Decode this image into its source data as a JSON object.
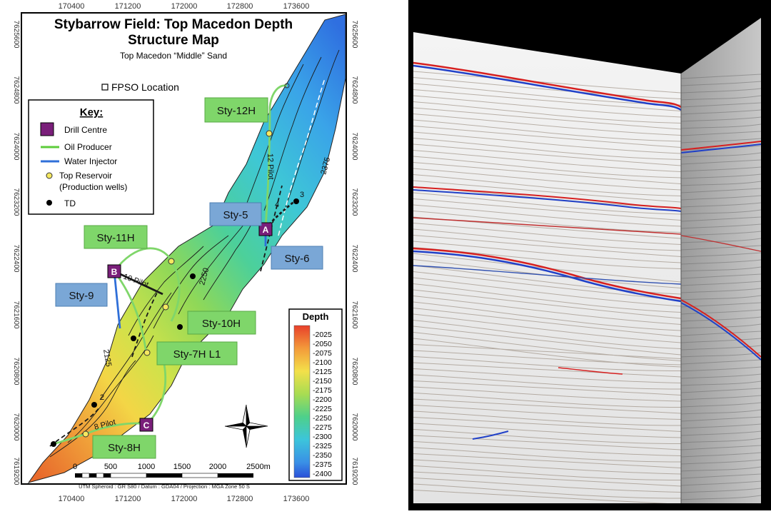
{
  "map": {
    "title_line1": "Stybarrow Field:  Top Macedon Depth",
    "title_line2": "Structure Map",
    "subtitle": "Top Macedon “Middle” Sand",
    "fpso_label": "FPSO Location",
    "x_ticks": [
      "170400",
      "171200",
      "172000",
      "172800",
      "173600"
    ],
    "y_ticks_left": [
      "7625600",
      "7624800",
      "7624000",
      "7623200",
      "7622400",
      "7621600",
      "7620800",
      "7620000",
      "7619200"
    ],
    "y_ticks_right": [
      "7625600",
      "7624800",
      "7624000",
      "7623200",
      "7622400",
      "7621600",
      "7620800",
      "7620000",
      "7619200"
    ],
    "key": {
      "title": "Key:",
      "items": [
        {
          "label": "Drill Centre",
          "symbol": "drill-centre",
          "color": "#7a1f7a"
        },
        {
          "label": "Oil Producer",
          "symbol": "line",
          "color": "#5ccc3a"
        },
        {
          "label": "Water Injector",
          "symbol": "line",
          "color": "#2f6fd8"
        },
        {
          "label": "Top Reservoir",
          "symbol": "dot",
          "color": "#f5e860"
        },
        {
          "label": "(Production wells)",
          "symbol": "none"
        },
        {
          "label": "TD",
          "symbol": "dot",
          "color": "#000000"
        }
      ]
    },
    "wells": [
      {
        "label": "Sty-12H",
        "type": "producer"
      },
      {
        "label": "Sty-5",
        "type": "injector"
      },
      {
        "label": "Sty-6",
        "type": "injector"
      },
      {
        "label": "Sty-11H",
        "type": "producer"
      },
      {
        "label": "Sty-9",
        "type": "injector"
      },
      {
        "label": "Sty-10H",
        "type": "producer"
      },
      {
        "label": "Sty-7H L1",
        "type": "producer"
      },
      {
        "label": "Sty-8H",
        "type": "producer"
      }
    ],
    "drill_centres": [
      "A",
      "B",
      "C"
    ],
    "pilot_labels": [
      "12 Pilot",
      "10 Pilot",
      "8 Pilot"
    ],
    "small_labels": [
      "4",
      "3",
      "2"
    ],
    "contour_labels": [
      "2375",
      "2250",
      "2125"
    ],
    "legend": {
      "title": "Depth",
      "values": [
        "-2025",
        "-2050",
        "-2075",
        "-2100",
        "-2125",
        "-2150",
        "-2175",
        "-2200",
        "-2225",
        "-2250",
        "-2275",
        "-2300",
        "-2325",
        "-2350",
        "-2375",
        "-2400"
      ]
    },
    "scale_labels": [
      "0",
      "500",
      "1000",
      "1500",
      "2000",
      "2500m"
    ],
    "footer": "UTM Spheroid : GR S80 / Datum : GDA04 / Projection : MGA Zone 50 S",
    "colors": {
      "producer": "#7fd66a",
      "injector": "#7aa7d6",
      "drill_centre": "#7a1f7a"
    }
  }
}
